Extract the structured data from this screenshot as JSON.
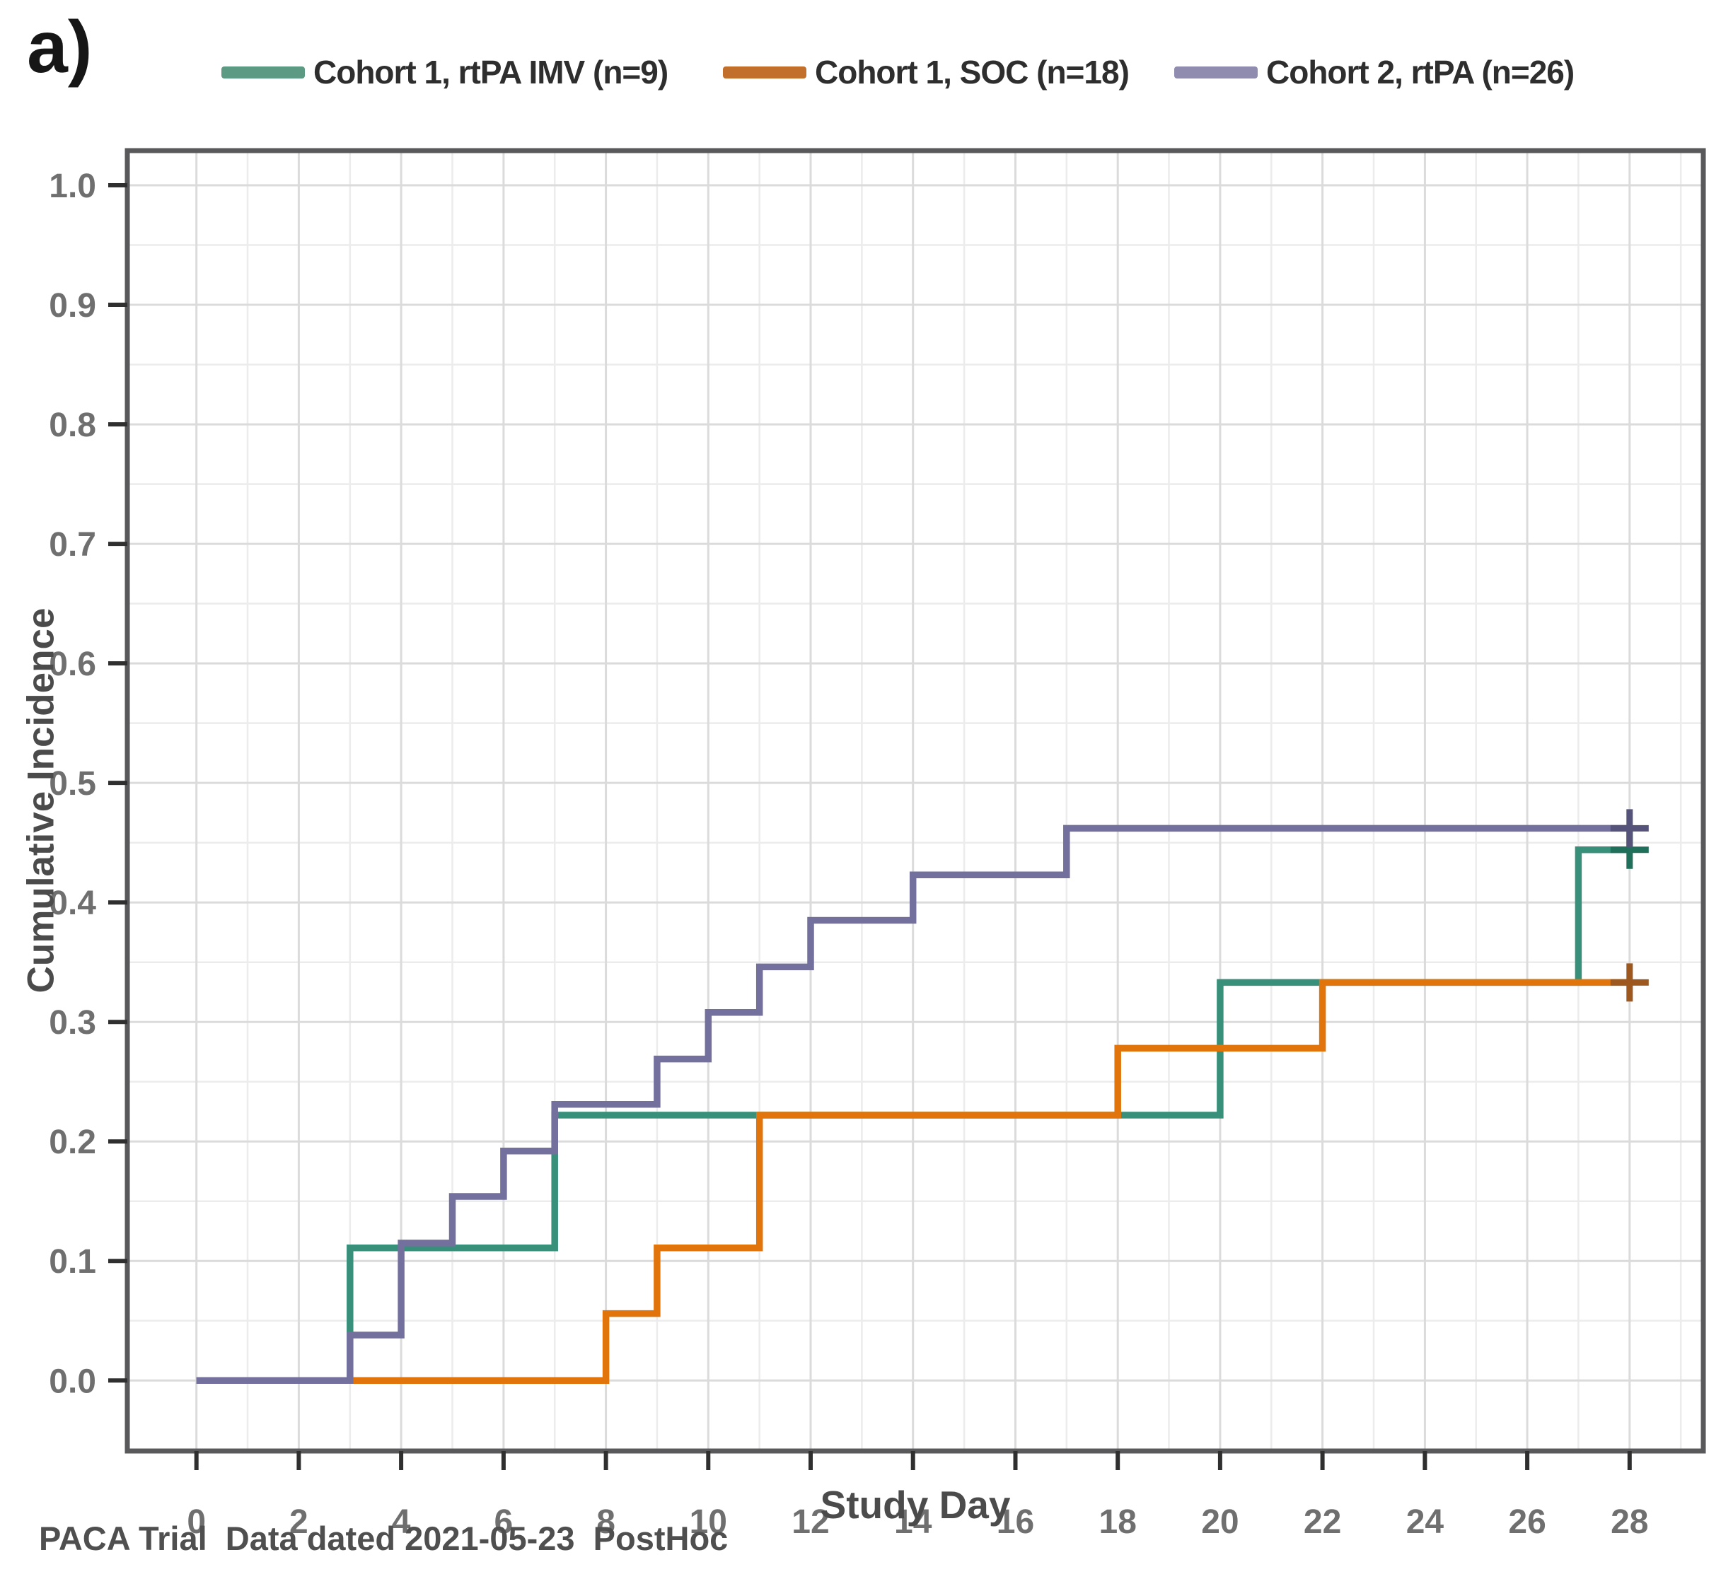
{
  "panel_label": "a)",
  "footer": "PACA Trial  Data dated 2021-05-23  PostHoc",
  "chart_data": {
    "type": "line",
    "variant": "step-after",
    "title": "",
    "xlabel": "Study Day",
    "ylabel": "Cumulative Incidence",
    "xlim": [
      -1.35,
      29.44
    ],
    "ylim": [
      -0.059,
      1.029
    ],
    "x_ticks": [
      0,
      2,
      4,
      6,
      8,
      10,
      12,
      14,
      16,
      18,
      20,
      22,
      24,
      26,
      28
    ],
    "y_ticks": [
      "0.0",
      "0.1",
      "0.2",
      "0.3",
      "0.4",
      "0.5",
      "0.6",
      "0.7",
      "0.8",
      "0.9",
      "1.0"
    ],
    "grid": {
      "minor_x_step": 1,
      "minor_y_step": 0.05,
      "major_color": "#dbdbdb",
      "minor_color": "#ececec",
      "on": true
    },
    "legend_position": "top",
    "series": [
      {
        "name": "Cohort 1, rtPA IMV (n=9)",
        "color": "#38907b",
        "legend_color": "#5d9a83",
        "censor_color": "#1f6f5b",
        "points": [
          [
            0,
            0
          ],
          [
            3,
            0.111
          ],
          [
            7,
            0.222
          ],
          [
            20,
            0.333
          ],
          [
            27,
            0.444
          ],
          [
            28,
            0.444
          ]
        ],
        "censored": [
          [
            28,
            0.444
          ]
        ]
      },
      {
        "name": "Cohort 1, SOC (n=18)",
        "color": "#e1750c",
        "legend_color": "#c26f2b",
        "censor_color": "#9c581f",
        "points": [
          [
            0,
            0
          ],
          [
            8,
            0.056
          ],
          [
            9,
            0.111
          ],
          [
            11,
            0.222
          ],
          [
            18,
            0.278
          ],
          [
            22,
            0.333
          ],
          [
            28,
            0.333
          ]
        ],
        "censored": [
          [
            28,
            0.333
          ]
        ]
      },
      {
        "name": "Cohort 2, rtPA (n=26)",
        "color": "#73709e",
        "legend_color": "#8f8cb0",
        "censor_color": "#56537b",
        "points": [
          [
            0,
            0
          ],
          [
            3,
            0.038
          ],
          [
            4,
            0.115
          ],
          [
            5,
            0.154
          ],
          [
            6,
            0.192
          ],
          [
            7,
            0.231
          ],
          [
            9,
            0.269
          ],
          [
            10,
            0.308
          ],
          [
            11,
            0.346
          ],
          [
            12,
            0.385
          ],
          [
            14,
            0.423
          ],
          [
            17,
            0.462
          ],
          [
            28,
            0.462
          ]
        ],
        "censored": [
          [
            28,
            0.462
          ]
        ]
      }
    ]
  }
}
